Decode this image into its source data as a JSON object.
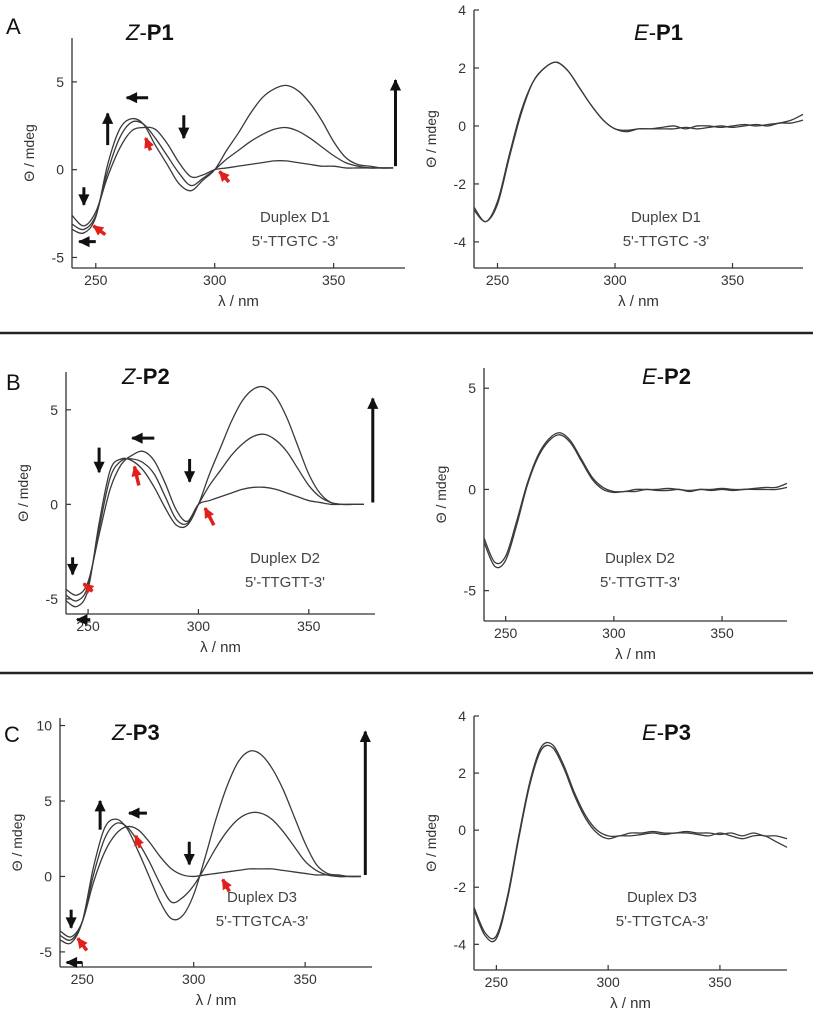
{
  "figure": {
    "divider_color": "#222222",
    "arrow_color_black": "#111111",
    "arrow_color_red": "#e0201b",
    "curve_color": "#3a3a3a"
  },
  "chart_data": [
    {
      "id": "A-left",
      "panel_letter": "A",
      "type": "line",
      "title_italic": "Z",
      "title_bold": "P1",
      "xlabel": "λ / nm",
      "ylabel": "Θ / mdeg",
      "xlim": [
        240,
        380
      ],
      "ylim": [
        -5.6,
        7.5
      ],
      "xticks": [
        250,
        300,
        350
      ],
      "yticks": [
        -5,
        0,
        5
      ],
      "annotation": [
        "Duplex D1",
        "5'-TTGTC -3'"
      ],
      "legend": "none",
      "grid": false,
      "x": [
        240,
        245,
        250,
        255,
        260,
        265,
        270,
        275,
        280,
        285,
        290,
        295,
        300,
        305,
        310,
        315,
        320,
        325,
        330,
        335,
        340,
        345,
        350,
        355,
        360,
        365,
        370,
        375
      ],
      "series": [
        {
          "values": [
            -2.6,
            -3.2,
            -2.4,
            -0.4,
            1.2,
            2.2,
            2.4,
            2.3,
            1.5,
            0.4,
            -0.4,
            -0.3,
            0.0,
            0.1,
            0.2,
            0.3,
            0.4,
            0.5,
            0.5,
            0.4,
            0.3,
            0.2,
            0.2,
            0.1,
            0.1,
            0.1,
            0.1,
            0.1
          ]
        },
        {
          "values": [
            -3.1,
            -3.4,
            -2.6,
            -0.1,
            1.8,
            2.7,
            2.6,
            1.8,
            0.8,
            -0.2,
            -0.9,
            -0.5,
            0.0,
            0.6,
            1.1,
            1.6,
            2.0,
            2.3,
            2.4,
            2.2,
            1.8,
            1.3,
            0.8,
            0.4,
            0.2,
            0.1,
            0.1,
            0.1
          ]
        },
        {
          "values": [
            -3.4,
            -3.6,
            -2.7,
            0.3,
            2.3,
            2.9,
            2.6,
            1.4,
            0.3,
            -0.8,
            -1.2,
            -0.6,
            0.0,
            1.1,
            2.1,
            3.2,
            4.1,
            4.6,
            4.8,
            4.5,
            3.8,
            2.8,
            1.6,
            0.7,
            0.3,
            0.2,
            0.1,
            0.1
          ]
        }
      ]
    },
    {
      "id": "A-right",
      "type": "line",
      "title_italic": "E",
      "title_bold": "P1",
      "xlabel": "λ / nm",
      "ylabel": "Θ / mdeg",
      "xlim": [
        240,
        380
      ],
      "ylim": [
        -4.9,
        4.0
      ],
      "xticks": [
        250,
        300,
        350
      ],
      "yticks": [
        -4,
        -2,
        0,
        2,
        4
      ],
      "annotation": [
        "Duplex D1",
        "5'-TTGTC -3'"
      ],
      "legend": "none",
      "grid": false,
      "x": [
        240,
        245,
        250,
        255,
        260,
        265,
        270,
        275,
        280,
        285,
        290,
        295,
        300,
        305,
        310,
        315,
        320,
        325,
        330,
        335,
        340,
        345,
        350,
        355,
        360,
        365,
        370,
        375,
        380
      ],
      "series": [
        {
          "values": [
            -2.8,
            -3.3,
            -2.6,
            -1.0,
            0.5,
            1.5,
            2.0,
            2.2,
            1.9,
            1.3,
            0.7,
            0.2,
            -0.1,
            -0.2,
            -0.1,
            -0.1,
            -0.05,
            0.0,
            -0.1,
            0.0,
            0.0,
            -0.05,
            0.0,
            0.05,
            0.0,
            0.05,
            0.1,
            0.2,
            0.4
          ]
        },
        {
          "values": [
            -2.9,
            -3.3,
            -2.7,
            -1.1,
            0.4,
            1.5,
            2.0,
            2.2,
            1.9,
            1.3,
            0.7,
            0.2,
            -0.1,
            -0.15,
            -0.1,
            -0.1,
            -0.1,
            -0.1,
            -0.05,
            -0.1,
            -0.05,
            0.0,
            -0.05,
            0.0,
            0.05,
            0.0,
            0.1,
            0.1,
            0.2
          ]
        }
      ]
    },
    {
      "id": "B-left",
      "panel_letter": "B",
      "type": "line",
      "title_italic": "Z",
      "title_bold": "P2",
      "xlabel": "λ / nm",
      "ylabel": "Θ / mdeg",
      "xlim": [
        240,
        380
      ],
      "ylim": [
        -5.8,
        7.0
      ],
      "xticks": [
        250,
        300,
        350
      ],
      "yticks": [
        -5,
        0,
        5
      ],
      "annotation": [
        "Duplex D2",
        "5'-TTGTT-3'"
      ],
      "legend": "none",
      "grid": false,
      "x": [
        240,
        245,
        250,
        255,
        260,
        265,
        270,
        275,
        280,
        285,
        290,
        295,
        300,
        305,
        310,
        315,
        320,
        325,
        330,
        335,
        340,
        345,
        350,
        355,
        360,
        365,
        370,
        375
      ],
      "series": [
        {
          "values": [
            -4.5,
            -4.8,
            -4.1,
            -1.6,
            0.8,
            2.1,
            2.6,
            2.8,
            2.3,
            1.1,
            -0.3,
            -0.9,
            0.0,
            0.2,
            0.4,
            0.6,
            0.8,
            0.9,
            0.9,
            0.8,
            0.6,
            0.4,
            0.2,
            0.1,
            0.0,
            0.0,
            0.0,
            0.0
          ]
        },
        {
          "values": [
            -4.8,
            -5.1,
            -4.3,
            -1.3,
            1.4,
            2.3,
            2.4,
            2.2,
            1.6,
            0.4,
            -0.8,
            -1.0,
            0.0,
            1.0,
            1.8,
            2.6,
            3.2,
            3.6,
            3.7,
            3.4,
            2.8,
            1.9,
            1.0,
            0.4,
            0.1,
            0.0,
            0.0,
            0.0
          ]
        },
        {
          "values": [
            -5.1,
            -5.4,
            -4.5,
            -1.0,
            1.8,
            2.4,
            2.3,
            1.8,
            0.9,
            -0.2,
            -1.1,
            -1.1,
            0.0,
            1.6,
            3.0,
            4.4,
            5.5,
            6.1,
            6.2,
            5.7,
            4.6,
            3.1,
            1.6,
            0.6,
            0.1,
            0.0,
            0.0,
            0.0
          ]
        }
      ]
    },
    {
      "id": "B-right",
      "type": "line",
      "title_italic": "E",
      "title_bold": "P2",
      "xlabel": "λ / nm",
      "ylabel": "Θ / mdeg",
      "xlim": [
        240,
        380
      ],
      "ylim": [
        -6.5,
        6.0
      ],
      "xticks": [
        250,
        300,
        350
      ],
      "yticks": [
        -5,
        0,
        5
      ],
      "annotation": [
        "Duplex D2",
        "5'-TTGTT-3'"
      ],
      "legend": "none",
      "grid": false,
      "x": [
        240,
        245,
        250,
        255,
        260,
        265,
        270,
        275,
        280,
        285,
        290,
        295,
        300,
        305,
        310,
        315,
        320,
        325,
        330,
        335,
        340,
        345,
        350,
        355,
        360,
        365,
        370,
        375,
        380
      ],
      "series": [
        {
          "values": [
            -2.4,
            -3.6,
            -3.3,
            -1.6,
            0.3,
            1.7,
            2.5,
            2.8,
            2.4,
            1.5,
            0.6,
            0.1,
            -0.1,
            -0.1,
            0.0,
            0.0,
            0.0,
            0.05,
            0.0,
            -0.05,
            0.0,
            0.0,
            0.05,
            0.0,
            0.0,
            0.05,
            0.1,
            0.1,
            0.3
          ]
        },
        {
          "values": [
            -2.6,
            -3.8,
            -3.5,
            -1.8,
            0.2,
            1.6,
            2.4,
            2.7,
            2.3,
            1.4,
            0.5,
            0.0,
            -0.15,
            -0.1,
            -0.1,
            0.0,
            -0.05,
            -0.05,
            0.0,
            -0.1,
            0.0,
            -0.05,
            0.0,
            -0.05,
            0.0,
            0.0,
            0.0,
            0.0,
            0.1
          ]
        }
      ]
    },
    {
      "id": "C-left",
      "panel_letter": "C",
      "type": "line",
      "title_italic": "Z",
      "title_bold": "P3",
      "xlabel": "λ / nm",
      "ylabel": "Θ / mdeg",
      "xlim": [
        240,
        380
      ],
      "ylim": [
        -6.0,
        10.5
      ],
      "xticks": [
        250,
        300,
        350
      ],
      "yticks": [
        -5,
        0,
        5,
        10
      ],
      "annotation": [
        "Duplex D3",
        "5'-TTGTCA-3'"
      ],
      "legend": "none",
      "grid": false,
      "x": [
        240,
        245,
        250,
        255,
        260,
        265,
        270,
        275,
        280,
        285,
        290,
        295,
        300,
        305,
        310,
        315,
        320,
        325,
        330,
        335,
        340,
        345,
        350,
        355,
        360,
        365,
        370,
        375
      ],
      "series": [
        {
          "values": [
            -3.6,
            -4.0,
            -3.0,
            -0.4,
            1.6,
            2.8,
            3.3,
            3.1,
            2.3,
            1.3,
            0.5,
            0.1,
            0.0,
            0.1,
            0.2,
            0.3,
            0.4,
            0.5,
            0.5,
            0.5,
            0.4,
            0.3,
            0.2,
            0.1,
            0.1,
            0.0,
            0.0,
            0.0
          ]
        },
        {
          "values": [
            -3.9,
            -4.2,
            -3.0,
            0.1,
            2.5,
            3.5,
            3.3,
            2.3,
            1.0,
            -0.5,
            -1.7,
            -1.4,
            -0.6,
            0.6,
            1.9,
            3.0,
            3.8,
            4.2,
            4.2,
            3.8,
            3.0,
            2.0,
            1.0,
            0.4,
            0.1,
            0.0,
            0.0,
            0.0
          ]
        },
        {
          "values": [
            -4.2,
            -4.4,
            -3.0,
            0.6,
            3.2,
            3.8,
            3.2,
            1.7,
            0.0,
            -1.7,
            -2.8,
            -2.6,
            -1.2,
            1.2,
            3.8,
            6.0,
            7.6,
            8.3,
            8.1,
            7.2,
            5.8,
            4.0,
            2.2,
            0.8,
            0.2,
            0.1,
            0.0,
            0.0
          ]
        }
      ]
    },
    {
      "id": "C-right",
      "type": "line",
      "title_italic": "E",
      "title_bold": "P3",
      "xlabel": "λ / nm",
      "ylabel": "Θ / mdeg",
      "xlim": [
        240,
        380
      ],
      "ylim": [
        -4.9,
        4.0
      ],
      "xticks": [
        250,
        300,
        350
      ],
      "yticks": [
        -4,
        -2,
        0,
        2,
        4
      ],
      "annotation": [
        "Duplex D3",
        "5'-TTGTCA-3'"
      ],
      "legend": "none",
      "grid": false,
      "x": [
        240,
        245,
        250,
        255,
        260,
        265,
        270,
        275,
        280,
        285,
        290,
        295,
        300,
        305,
        310,
        315,
        320,
        325,
        330,
        335,
        340,
        345,
        350,
        355,
        360,
        365,
        370,
        375,
        380
      ],
      "series": [
        {
          "values": [
            -2.7,
            -3.6,
            -3.7,
            -2.3,
            -0.2,
            1.7,
            2.9,
            3.0,
            2.3,
            1.3,
            0.5,
            0.0,
            -0.2,
            -0.2,
            -0.1,
            -0.1,
            -0.05,
            -0.1,
            -0.1,
            -0.05,
            -0.1,
            -0.1,
            -0.15,
            -0.1,
            -0.2,
            -0.1,
            -0.2,
            -0.2,
            -0.3
          ]
        },
        {
          "values": [
            -2.8,
            -3.7,
            -3.8,
            -2.4,
            -0.3,
            1.6,
            2.8,
            2.9,
            2.2,
            1.2,
            0.4,
            -0.1,
            -0.3,
            -0.2,
            -0.2,
            -0.15,
            -0.1,
            -0.15,
            -0.1,
            -0.1,
            -0.15,
            -0.2,
            -0.1,
            -0.2,
            -0.3,
            -0.2,
            -0.2,
            -0.4,
            -0.6
          ]
        }
      ]
    }
  ]
}
